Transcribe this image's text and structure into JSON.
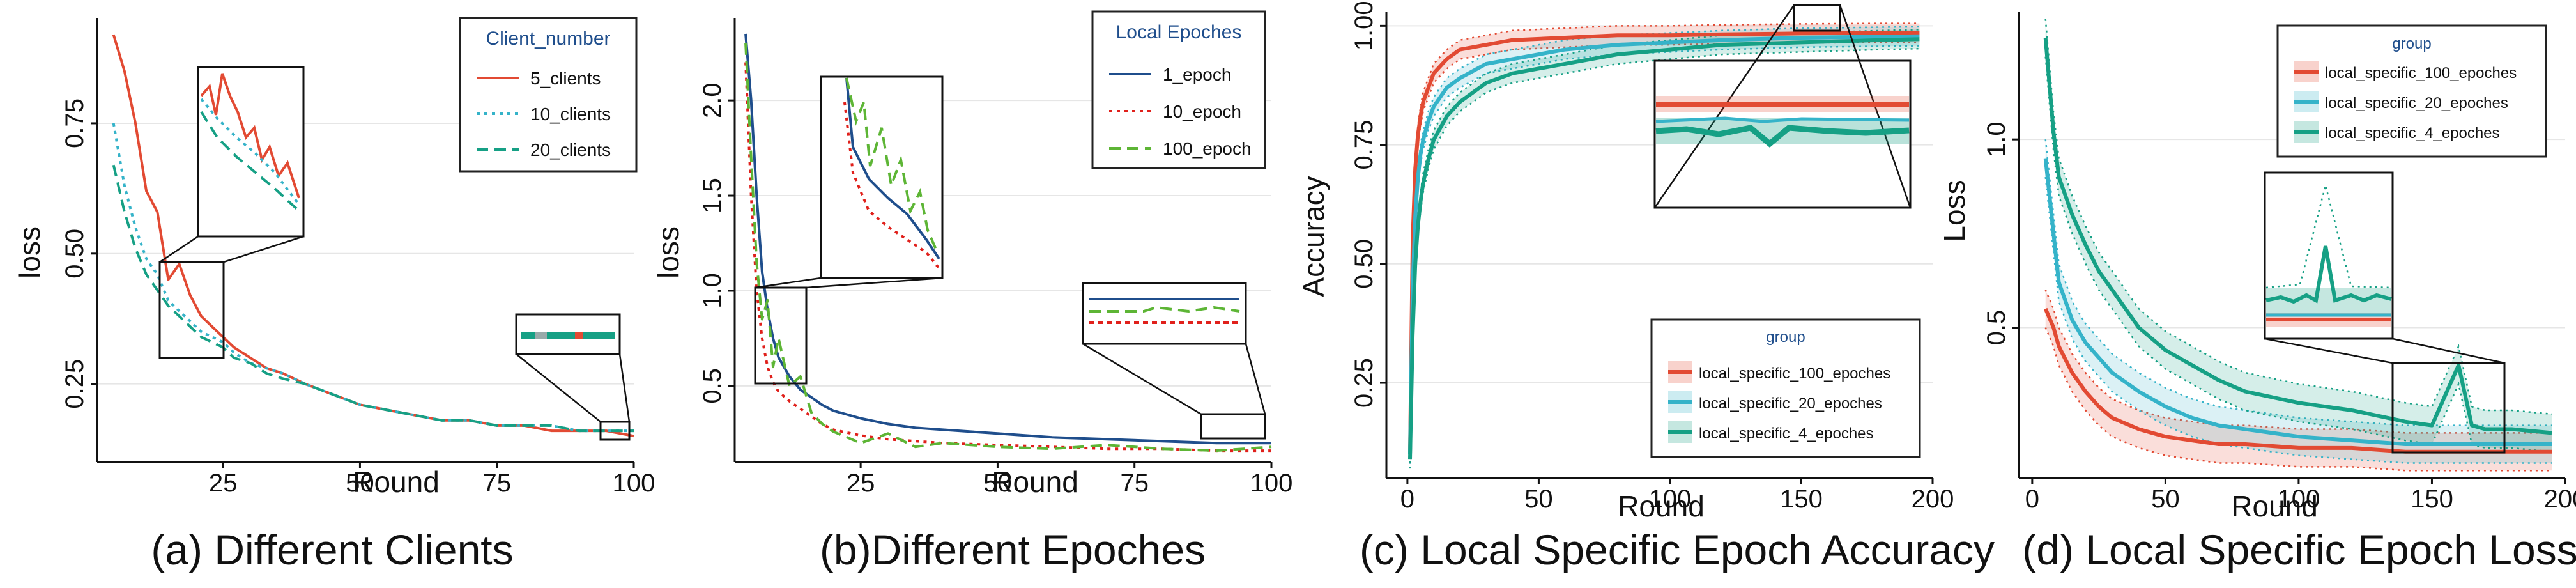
{
  "colors": {
    "red": "#e24a33",
    "cyan": "#35b3c9",
    "teal": "#16a085",
    "blue": "#1f4e8c",
    "dred": "#e0201b",
    "green": "#5db535",
    "grid": "#e6e6e6"
  },
  "chart_data": [
    {
      "type": "line",
      "caption": "(a) Different Clients",
      "xlabel": "Round",
      "ylabel": "loss",
      "xlim": [
        2,
        100
      ],
      "ylim": [
        0.1,
        0.94
      ],
      "xticks": [
        25,
        50,
        75,
        100
      ],
      "yticks": [
        0.25,
        0.5,
        0.75
      ],
      "legend": {
        "title": "Client_number",
        "position": "top-right"
      },
      "series": [
        {
          "name": "5_clients",
          "color": "#e24a33",
          "dash": "solid",
          "x": [
            5,
            7,
            9,
            11,
            13,
            15,
            17,
            19,
            21,
            23,
            25,
            27,
            30,
            33,
            36,
            40,
            45,
            50,
            55,
            60,
            65,
            70,
            75,
            80,
            85,
            90,
            95,
            100
          ],
          "y": [
            0.92,
            0.85,
            0.75,
            0.62,
            0.58,
            0.45,
            0.48,
            0.42,
            0.38,
            0.36,
            0.34,
            0.32,
            0.3,
            0.28,
            0.27,
            0.25,
            0.23,
            0.21,
            0.2,
            0.19,
            0.18,
            0.18,
            0.17,
            0.17,
            0.16,
            0.16,
            0.16,
            0.15
          ]
        },
        {
          "name": "10_clients",
          "color": "#35b3c9",
          "dash": "dotted",
          "x": [
            5,
            7,
            9,
            11,
            13,
            15,
            17,
            19,
            21,
            23,
            25,
            27,
            30,
            33,
            36,
            40,
            45,
            50,
            55,
            60,
            65,
            70,
            75,
            80,
            85,
            90,
            95,
            100
          ],
          "y": [
            0.75,
            0.63,
            0.55,
            0.49,
            0.46,
            0.41,
            0.39,
            0.37,
            0.35,
            0.34,
            0.33,
            0.31,
            0.29,
            0.28,
            0.27,
            0.25,
            0.23,
            0.21,
            0.2,
            0.19,
            0.18,
            0.18,
            0.17,
            0.17,
            0.17,
            0.16,
            0.16,
            0.16
          ]
        },
        {
          "name": "20_clients",
          "color": "#16a085",
          "dash": "dashed",
          "x": [
            5,
            7,
            9,
            11,
            13,
            15,
            17,
            19,
            21,
            23,
            25,
            27,
            30,
            33,
            36,
            40,
            45,
            50,
            55,
            60,
            65,
            70,
            75,
            80,
            85,
            90,
            95,
            100
          ],
          "y": [
            0.67,
            0.58,
            0.51,
            0.46,
            0.43,
            0.4,
            0.38,
            0.36,
            0.34,
            0.33,
            0.32,
            0.3,
            0.29,
            0.27,
            0.26,
            0.25,
            0.23,
            0.21,
            0.2,
            0.19,
            0.18,
            0.18,
            0.17,
            0.17,
            0.17,
            0.16,
            0.16,
            0.16
          ]
        }
      ]
    },
    {
      "type": "line",
      "caption": "(b)Different Epoches",
      "xlabel": "Round",
      "ylabel": "loss",
      "xlim": [
        2,
        100
      ],
      "ylim": [
        0.1,
        2.4
      ],
      "xticks": [
        25,
        50,
        75,
        100
      ],
      "yticks": [
        0.5,
        1.0,
        1.5,
        2.0
      ],
      "legend": {
        "title": "Local Epoches",
        "position": "top-right"
      },
      "series": [
        {
          "name": "1_epoch",
          "color": "#1f4e8c",
          "dash": "solid",
          "x": [
            4,
            5,
            6,
            7,
            8,
            9,
            10,
            12,
            14,
            16,
            18,
            20,
            25,
            30,
            35,
            40,
            50,
            60,
            70,
            80,
            90,
            100
          ],
          "y": [
            2.35,
            2.0,
            1.5,
            1.1,
            0.9,
            0.75,
            0.65,
            0.55,
            0.48,
            0.44,
            0.4,
            0.37,
            0.33,
            0.3,
            0.28,
            0.27,
            0.25,
            0.23,
            0.22,
            0.21,
            0.2,
            0.2
          ]
        },
        {
          "name": "10_epoch",
          "color": "#e0201b",
          "dash": "dotted",
          "x": [
            4,
            5,
            6,
            7,
            8,
            9,
            10,
            12,
            14,
            16,
            18,
            20,
            25,
            30,
            35,
            40,
            50,
            60,
            70,
            80,
            90,
            100
          ],
          "y": [
            2.2,
            1.5,
            1.0,
            0.75,
            0.6,
            0.52,
            0.47,
            0.42,
            0.38,
            0.34,
            0.3,
            0.27,
            0.24,
            0.22,
            0.21,
            0.2,
            0.19,
            0.18,
            0.17,
            0.17,
            0.16,
            0.16
          ]
        },
        {
          "name": "100_epoch",
          "color": "#5db535",
          "dash": "dashed",
          "x": [
            4,
            5,
            6,
            7,
            8,
            9,
            10,
            12,
            14,
            16,
            18,
            20,
            25,
            30,
            35,
            40,
            50,
            60,
            70,
            80,
            90,
            100
          ],
          "y": [
            2.3,
            1.7,
            1.15,
            0.85,
            0.95,
            0.6,
            0.75,
            0.5,
            0.55,
            0.36,
            0.3,
            0.26,
            0.2,
            0.25,
            0.18,
            0.2,
            0.18,
            0.17,
            0.19,
            0.17,
            0.16,
            0.18
          ]
        }
      ]
    },
    {
      "type": "line",
      "caption": "(c) Local Specific Epoch Accuracy",
      "xlabel": "Round",
      "ylabel": "Accuracy",
      "xlim": [
        -8,
        200
      ],
      "ylim": [
        0.05,
        1.03
      ],
      "xticks": [
        0,
        50,
        100,
        150,
        200
      ],
      "yticks": [
        0.25,
        0.5,
        0.75,
        1.0
      ],
      "legend": {
        "title": "group",
        "position": "bottom-right"
      },
      "series": [
        {
          "name": "local_specific_100_epoches",
          "color": "#e24a33",
          "x": [
            1,
            2,
            3,
            4,
            5,
            6,
            8,
            10,
            15,
            20,
            30,
            40,
            60,
            80,
            100,
            120,
            150,
            180,
            195
          ],
          "y": [
            0.1,
            0.55,
            0.7,
            0.77,
            0.81,
            0.84,
            0.87,
            0.9,
            0.93,
            0.95,
            0.96,
            0.97,
            0.975,
            0.98,
            0.98,
            0.982,
            0.984,
            0.985,
            0.985
          ]
        },
        {
          "name": "local_specific_20_epoches",
          "color": "#35b3c9",
          "x": [
            1,
            2,
            3,
            4,
            5,
            6,
            8,
            10,
            15,
            20,
            30,
            40,
            60,
            80,
            100,
            120,
            150,
            180,
            195
          ],
          "y": [
            0.1,
            0.45,
            0.6,
            0.68,
            0.73,
            0.76,
            0.8,
            0.83,
            0.87,
            0.89,
            0.92,
            0.93,
            0.95,
            0.96,
            0.965,
            0.97,
            0.975,
            0.977,
            0.978
          ]
        },
        {
          "name": "local_specific_4_epoches",
          "color": "#16a085",
          "x": [
            1,
            2,
            3,
            4,
            5,
            6,
            8,
            10,
            15,
            20,
            30,
            40,
            60,
            80,
            100,
            120,
            150,
            180,
            195
          ],
          "y": [
            0.09,
            0.35,
            0.5,
            0.58,
            0.63,
            0.67,
            0.72,
            0.76,
            0.81,
            0.84,
            0.88,
            0.9,
            0.92,
            0.94,
            0.95,
            0.96,
            0.965,
            0.97,
            0.972
          ]
        }
      ]
    },
    {
      "type": "line",
      "caption": "(d) Local Specific Epoch Loss",
      "xlabel": "Round",
      "ylabel": "Loss",
      "xlim": [
        -5,
        200
      ],
      "ylim": [
        0.1,
        1.34
      ],
      "xticks": [
        0,
        50,
        100,
        150,
        200
      ],
      "yticks": [
        0.5,
        1.0
      ],
      "legend": {
        "title": "group",
        "position": "top-right"
      },
      "series": [
        {
          "name": "local_specific_100_epoches",
          "color": "#e24a33",
          "x": [
            5,
            8,
            10,
            15,
            20,
            25,
            30,
            40,
            50,
            60,
            70,
            80,
            100,
            120,
            140,
            160,
            180,
            195
          ],
          "y": [
            0.55,
            0.5,
            0.45,
            0.38,
            0.33,
            0.29,
            0.26,
            0.23,
            0.21,
            0.2,
            0.19,
            0.19,
            0.18,
            0.18,
            0.17,
            0.17,
            0.17,
            0.17
          ]
        },
        {
          "name": "local_specific_20_epoches",
          "color": "#35b3c9",
          "x": [
            5,
            8,
            10,
            15,
            20,
            25,
            30,
            40,
            50,
            60,
            70,
            80,
            100,
            120,
            140,
            160,
            180,
            195
          ],
          "y": [
            0.95,
            0.75,
            0.62,
            0.52,
            0.46,
            0.42,
            0.38,
            0.33,
            0.29,
            0.26,
            0.24,
            0.23,
            0.21,
            0.2,
            0.19,
            0.19,
            0.19,
            0.19
          ]
        },
        {
          "name": "local_specific_4_epoches",
          "color": "#16a085",
          "x": [
            5,
            8,
            10,
            15,
            20,
            25,
            30,
            40,
            50,
            60,
            70,
            80,
            100,
            120,
            140,
            150,
            160,
            165,
            170,
            180,
            195
          ],
          "y": [
            1.27,
            1.02,
            0.9,
            0.8,
            0.72,
            0.65,
            0.6,
            0.5,
            0.44,
            0.4,
            0.36,
            0.33,
            0.3,
            0.28,
            0.25,
            0.24,
            0.4,
            0.24,
            0.23,
            0.23,
            0.22
          ]
        }
      ]
    }
  ]
}
